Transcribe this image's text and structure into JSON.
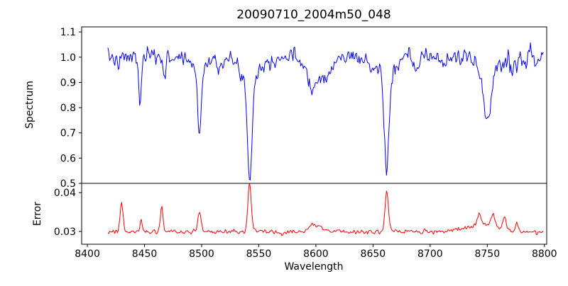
{
  "figure": {
    "background": "#ffffff",
    "spine_color": "#000000"
  },
  "chart_data": {
    "type": "line",
    "title": "20090710_2004m50_048",
    "xlabel": "Wavelength",
    "grid": false,
    "legend": "none",
    "xlim": [
      8395,
      8802
    ],
    "xticks": [
      8400,
      8450,
      8500,
      8550,
      8600,
      8650,
      8700,
      8750,
      8800
    ],
    "xtick_labels": [
      "8400",
      "8450",
      "8500",
      "8550",
      "8600",
      "8650",
      "8700",
      "8750",
      "8800"
    ],
    "x_start": 8418,
    "x_end": 8799,
    "x_step": 0.75,
    "noise_seed": 7,
    "panels": [
      {
        "name": "spectrum",
        "ylabel": "Spectrum",
        "color": "#0000ff",
        "ylim": [
          0.5,
          1.12
        ],
        "yticks": [
          0.5,
          0.6,
          0.7,
          0.8,
          0.9,
          1.0,
          1.1
        ],
        "ytick_labels": [
          "0.5",
          "0.6",
          "0.7",
          "0.8",
          "0.9",
          "1.0",
          "1.1"
        ],
        "model": {
          "continuum": 1.0,
          "noise_sigma": 0.017,
          "edge_noise": {
            "center": 8778,
            "amp": 0.7,
            "sigma": 12
          },
          "absorption_lines": [
            {
              "center": 8427,
              "depth": 0.05,
              "sigma": 1.2
            },
            {
              "center": 8446,
              "depth": 0.2,
              "sigma": 1.1
            },
            {
              "center": 8468,
              "depth": 0.07,
              "sigma": 1.2
            },
            {
              "center": 8498,
              "depth": 0.25,
              "sigma": 1.6,
              "wing_depth": 0.045,
              "wing_sigma": 6
            },
            {
              "center": 8514,
              "depth": 0.04,
              "sigma": 1.5
            },
            {
              "center": 8542,
              "depth": 0.4,
              "sigma": 2.0,
              "wing_depth": 0.08,
              "wing_sigma": 9
            },
            {
              "center": 8598,
              "depth": 0.12,
              "sigma": 5
            },
            {
              "center": 8611,
              "depth": 0.07,
              "sigma": 4
            },
            {
              "center": 8648,
              "depth": 0.04,
              "sigma": 2
            },
            {
              "center": 8662,
              "depth": 0.37,
              "sigma": 2.0,
              "wing_depth": 0.075,
              "wing_sigma": 8
            },
            {
              "center": 8688,
              "depth": 0.05,
              "sigma": 2
            },
            {
              "center": 8713,
              "depth": 0.03,
              "sigma": 2
            },
            {
              "center": 8750,
              "depth": 0.22,
              "sigma": 3.2,
              "wing_depth": 0.04,
              "wing_sigma": 9
            },
            {
              "center": 8772,
              "depth": 0.05,
              "sigma": 1.5
            }
          ]
        }
      },
      {
        "name": "error",
        "ylabel": "Error",
        "color": "#ff0000",
        "ylim": [
          0.0267,
          0.0424
        ],
        "yticks": [
          0.03,
          0.04
        ],
        "ytick_labels": [
          "0.03",
          "0.04"
        ],
        "model": {
          "baseline": 0.0299,
          "noise_sigma": 0.0003,
          "spikes": [
            {
              "center": 8430,
              "amp": 0.0075,
              "sigma": 1.2
            },
            {
              "center": 8447,
              "amp": 0.003,
              "sigma": 1.0
            },
            {
              "center": 8465,
              "amp": 0.0065,
              "sigma": 1.2
            },
            {
              "center": 8498,
              "amp": 0.0055,
              "sigma": 1.3
            },
            {
              "center": 8542,
              "amp": 0.0125,
              "sigma": 1.5
            },
            {
              "center": 8600,
              "amp": 0.0018,
              "sigma": 6
            },
            {
              "center": 8662,
              "amp": 0.0102,
              "sigma": 1.5
            },
            {
              "center": 8745,
              "amp": 0.002,
              "sigma": 12
            },
            {
              "center": 8743,
              "amp": 0.0028,
              "sigma": 1.5
            },
            {
              "center": 8755,
              "amp": 0.0033,
              "sigma": 1.5
            },
            {
              "center": 8765,
              "amp": 0.0033,
              "sigma": 1.5
            },
            {
              "center": 8776,
              "amp": 0.0022,
              "sigma": 1.2
            }
          ]
        }
      }
    ]
  }
}
